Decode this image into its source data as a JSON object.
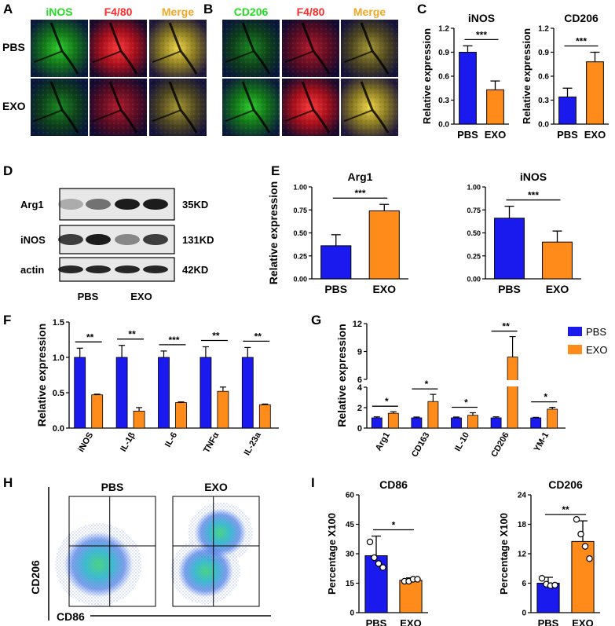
{
  "colors": {
    "pbs": "#1a1aee",
    "exo": "#ff8c1a"
  },
  "panels": {
    "a": {
      "letter": "A",
      "cols": [
        "iNOS",
        "F4/80",
        "Merge"
      ],
      "rows": [
        "PBS",
        "EXO"
      ]
    },
    "b": {
      "letter": "B",
      "cols": [
        "CD206",
        "F4/80",
        "Merge"
      ]
    },
    "c": {
      "letter": "C"
    },
    "d": {
      "letter": "D",
      "bands": [
        "Arg1",
        "iNOS",
        "actin"
      ],
      "sizes": [
        "35KD",
        "131KD",
        "42KD"
      ],
      "groups": [
        "PBS",
        "EXO"
      ]
    },
    "e": {
      "letter": "E"
    },
    "f": {
      "letter": "F"
    },
    "g": {
      "letter": "G",
      "legend": [
        "PBS",
        "EXO"
      ]
    },
    "h": {
      "letter": "H",
      "groups": [
        "PBS",
        "EXO"
      ],
      "ylabel": "CD206",
      "xlabel": "CD86"
    },
    "i": {
      "letter": "I"
    }
  },
  "chart_data": [
    {
      "id": "c1",
      "type": "bar",
      "title": "iNOS",
      "ylabel": "Relative expression",
      "categories": [
        "PBS",
        "EXO"
      ],
      "values": [
        0.9,
        0.43
      ],
      "errors": [
        0.08,
        0.11
      ],
      "ylim": [
        0,
        1.2
      ],
      "yticks": [
        "0.0",
        "0.3",
        "0.6",
        "0.9",
        "1.2"
      ],
      "sig": "***"
    },
    {
      "id": "c2",
      "type": "bar",
      "title": "CD206",
      "ylabel": "Relative expression",
      "categories": [
        "PBS",
        "EXO"
      ],
      "values": [
        0.34,
        0.78
      ],
      "errors": [
        0.11,
        0.12
      ],
      "ylim": [
        0,
        1.2
      ],
      "yticks": [
        "0.0",
        "0.3",
        "0.6",
        "0.9",
        "1.2"
      ],
      "sig": "***"
    },
    {
      "id": "e1",
      "type": "bar",
      "title": "Arg1",
      "ylabel": "Relative expression",
      "categories": [
        "PBS",
        "EXO"
      ],
      "values": [
        0.36,
        0.74
      ],
      "errors": [
        0.12,
        0.07
      ],
      "ylim": [
        0,
        1.0
      ],
      "yticks": [
        "0.00",
        "0.25",
        "0.50",
        "0.75",
        "1.00"
      ],
      "sig": "***"
    },
    {
      "id": "e2",
      "type": "bar",
      "title": "iNOS",
      "ylabel": "",
      "categories": [
        "PBS",
        "EXO"
      ],
      "values": [
        0.66,
        0.4
      ],
      "errors": [
        0.13,
        0.12
      ],
      "ylim": [
        0,
        1.0
      ],
      "yticks": [
        "0.00",
        "0.25",
        "0.50",
        "0.75",
        "1.00"
      ],
      "sig": "***"
    },
    {
      "id": "f",
      "type": "bar",
      "title": "",
      "ylabel": "Relative expression",
      "categories": [
        "iNOS",
        "IL-1β",
        "IL-6",
        "TNFα",
        "IL-23a"
      ],
      "series": [
        {
          "name": "PBS",
          "values": [
            1.0,
            1.0,
            1.0,
            1.0,
            1.0
          ],
          "errors": [
            0.13,
            0.17,
            0.09,
            0.15,
            0.14
          ]
        },
        {
          "name": "EXO",
          "values": [
            0.47,
            0.24,
            0.36,
            0.52,
            0.33
          ],
          "errors": [
            0.01,
            0.05,
            0.01,
            0.06,
            0.01
          ]
        }
      ],
      "sig": [
        "**",
        "**",
        "***",
        "**",
        "**"
      ],
      "ylim": [
        0,
        1.5
      ],
      "yticks": [
        "0.0",
        "0.5",
        "1.0",
        "1.5"
      ]
    },
    {
      "id": "g",
      "type": "bar",
      "title": "",
      "ylabel": "Relative expression",
      "categories": [
        "Arg1",
        "CD163",
        "IL-10",
        "CD206",
        "YM-1"
      ],
      "series": [
        {
          "name": "PBS",
          "values": [
            1.0,
            1.0,
            1.0,
            1.0,
            1.0
          ],
          "errors": [
            0.1,
            0.08,
            0.08,
            0.1,
            0.05
          ]
        },
        {
          "name": "EXO",
          "values": [
            1.45,
            2.6,
            1.25,
            8.4,
            1.85
          ],
          "errors": [
            0.15,
            0.7,
            0.25,
            2.2,
            0.18
          ]
        }
      ],
      "sig": [
        "*",
        "*",
        "*",
        "**",
        "*"
      ],
      "ylim": [
        0,
        12
      ],
      "break": [
        4,
        6
      ],
      "yticks": [
        "0",
        "2",
        "4",
        "6",
        "9",
        "12"
      ],
      "legend_position": "top-right"
    },
    {
      "id": "i1",
      "type": "bar",
      "title": "CD86",
      "ylabel": "Percentage X100",
      "categories": [
        "PBS",
        "EXO"
      ],
      "values": [
        29,
        16.5
      ],
      "errors": [
        10,
        1.2
      ],
      "points": [
        [
          36,
          28,
          25,
          23
        ],
        [
          16,
          16,
          17,
          17
        ]
      ],
      "ylim": [
        0,
        60
      ],
      "yticks": [
        "0",
        "15",
        "30",
        "45",
        "60"
      ],
      "sig": "*"
    },
    {
      "id": "i2",
      "type": "bar",
      "title": "CD206",
      "ylabel": "Percentage X100",
      "categories": [
        "PBS",
        "EXO"
      ],
      "values": [
        6,
        14.5
      ],
      "errors": [
        1.2,
        4.2
      ],
      "points": [
        [
          7,
          5.8,
          5.5,
          5.6
        ],
        [
          19,
          16,
          13.5,
          11
        ]
      ],
      "ylim": [
        0,
        24
      ],
      "yticks": [
        "0",
        "6",
        "12",
        "18",
        "24"
      ],
      "sig": "**"
    }
  ]
}
